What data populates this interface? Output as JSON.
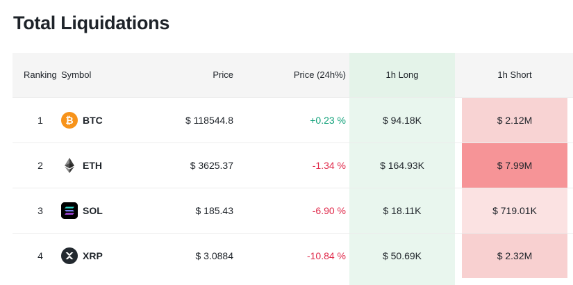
{
  "title": "Total Liquidations",
  "columns": {
    "ranking": "Ranking",
    "symbol": "Symbol",
    "price": "Price",
    "change": "Price (24h%)",
    "long": "1h Long",
    "short": "1h Short"
  },
  "rows": [
    {
      "rank": "1",
      "symbol": "BTC",
      "icon": "bitcoin-icon",
      "price": "$ 118544.8",
      "change": "+0.23 %",
      "direction": "up",
      "long": "$ 94.18K",
      "short": "$ 2.12M",
      "short_color": "#f8d3d3"
    },
    {
      "rank": "2",
      "symbol": "ETH",
      "icon": "ethereum-icon",
      "price": "$ 3625.37",
      "change": "-1.34 %",
      "direction": "down",
      "long": "$ 164.93K",
      "short": "$ 7.99M",
      "short_color": "#f69497"
    },
    {
      "rank": "3",
      "symbol": "SOL",
      "icon": "solana-icon",
      "price": "$ 185.43",
      "change": "-6.90 %",
      "direction": "down",
      "long": "$ 18.11K",
      "short": "$ 719.01K",
      "short_color": "#fbe2e2"
    },
    {
      "rank": "4",
      "symbol": "XRP",
      "icon": "xrp-icon",
      "price": "$ 3.0884",
      "change": "-10.84 %",
      "direction": "down",
      "long": "$ 50.69K",
      "short": "$ 2.32M",
      "short_color": "#f8d0d0"
    }
  ],
  "colors": {
    "up": "#11a17a",
    "down": "#e0294a",
    "long_bg": "#e9f6ee"
  }
}
